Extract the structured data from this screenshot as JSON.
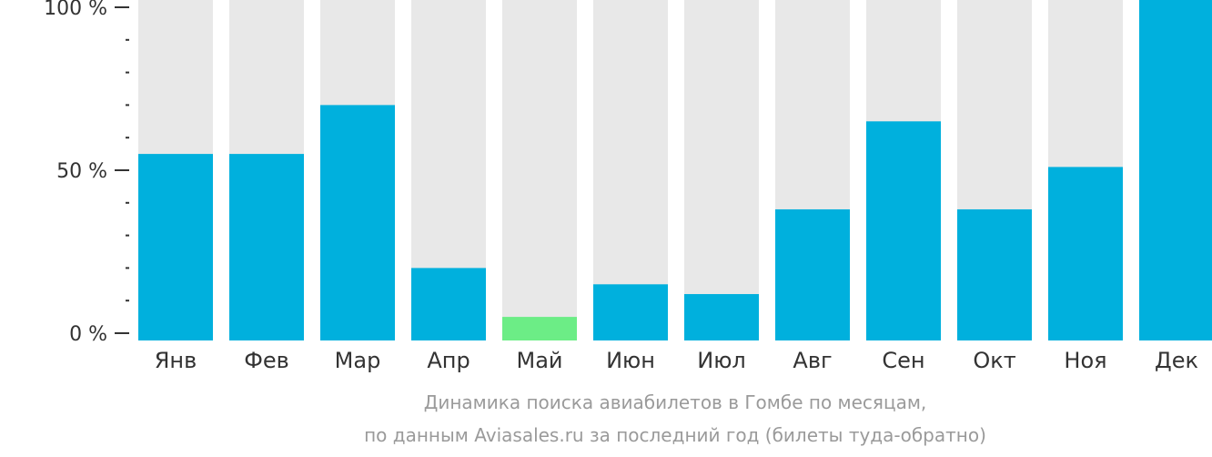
{
  "chart_data": {
    "type": "bar",
    "categories": [
      "Янв",
      "Фев",
      "Мар",
      "Апр",
      "Май",
      "Июн",
      "Июл",
      "Авг",
      "Сен",
      "Окт",
      "Ноя",
      "Дек"
    ],
    "values": [
      55,
      55,
      70,
      20,
      5,
      15,
      12,
      38,
      65,
      38,
      51,
      100
    ],
    "highlight_index": 4,
    "ylim": [
      0,
      100
    ],
    "y_ticks": [
      {
        "value": 100,
        "label": "100 %"
      },
      {
        "value": 50,
        "label": "50 %"
      },
      {
        "value": 0,
        "label": "0 %"
      }
    ],
    "y_minor_tick_step": 10,
    "background_bar_value": 100,
    "colors": {
      "bar": "#00b0dd",
      "highlight_bar": "#6ced86",
      "background_bar": "#e8e8e8",
      "axis": "#333333"
    },
    "title_line1": "Динамика поиска авиабилетов в Гомбе по месяцам,",
    "title_line2": "по данным Aviasales.ru за последний год (билеты туда-обратно)"
  }
}
